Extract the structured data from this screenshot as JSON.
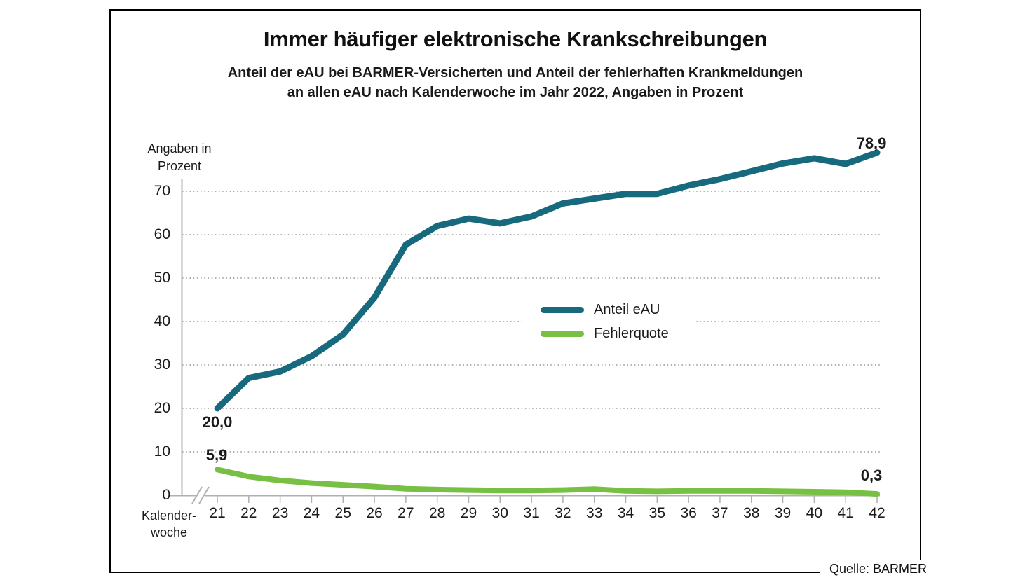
{
  "chart": {
    "title": "Immer häufiger elektronische Krankschreibungen",
    "subtitle_line1": "Anteil der eAU bei BARMER-Versicherten und Anteil der fehlerhaften Krankmeldungen",
    "subtitle_line2": "an allen eAU nach Kalenderwoche im Jahr 2022, Angaben in Prozent",
    "y_unit_line1": "Angaben in",
    "y_unit_line2": "Prozent",
    "x_unit_line1": "Kalender-",
    "x_unit_line2": "woche",
    "source": "Quelle: BARMER"
  },
  "chart_data": {
    "type": "line",
    "title": "Immer häufiger elektronische Krankschreibungen",
    "subtitle": "Anteil der eAU bei BARMER-Versicherten und Anteil der fehlerhaften Krankmeldungen an allen eAU nach Kalenderwoche im Jahr 2022, Angaben in Prozent",
    "xlabel": "Kalenderwoche",
    "ylabel": "Angaben in Prozent",
    "x": [
      21,
      22,
      23,
      24,
      25,
      26,
      27,
      28,
      29,
      30,
      31,
      32,
      33,
      34,
      35,
      36,
      37,
      38,
      39,
      40,
      41,
      42
    ],
    "y_ticks": [
      0,
      10,
      20,
      30,
      40,
      50,
      60,
      70
    ],
    "ylim": [
      0,
      80
    ],
    "grid": "horizontal-dotted",
    "legend_position": "center-right",
    "axis_break_on_x": true,
    "series": [
      {
        "name": "Anteil eAU",
        "color": "#17697d",
        "values": [
          20.0,
          27.0,
          28.5,
          32.0,
          37.0,
          45.5,
          57.7,
          62.0,
          63.7,
          62.6,
          64.2,
          67.2,
          68.3,
          69.4,
          69.4,
          71.3,
          72.8,
          74.6,
          76.4,
          77.6,
          76.3,
          78.9
        ],
        "first_point_label": "20,0",
        "last_point_label": "78,9"
      },
      {
        "name": "Fehlerquote",
        "color": "#77c043",
        "values": [
          5.9,
          4.3,
          3.4,
          2.8,
          2.4,
          2.0,
          1.5,
          1.3,
          1.2,
          1.1,
          1.1,
          1.2,
          1.4,
          1.0,
          0.9,
          1.0,
          1.0,
          1.0,
          0.9,
          0.8,
          0.7,
          0.3
        ],
        "first_point_label": "5,9",
        "last_point_label": "0,3"
      }
    ],
    "source": "Quelle: BARMER",
    "colors": {
      "axis_gray": "#b0b0b0",
      "grid_gray": "#999999",
      "text_black": "#1a1a1a"
    }
  }
}
